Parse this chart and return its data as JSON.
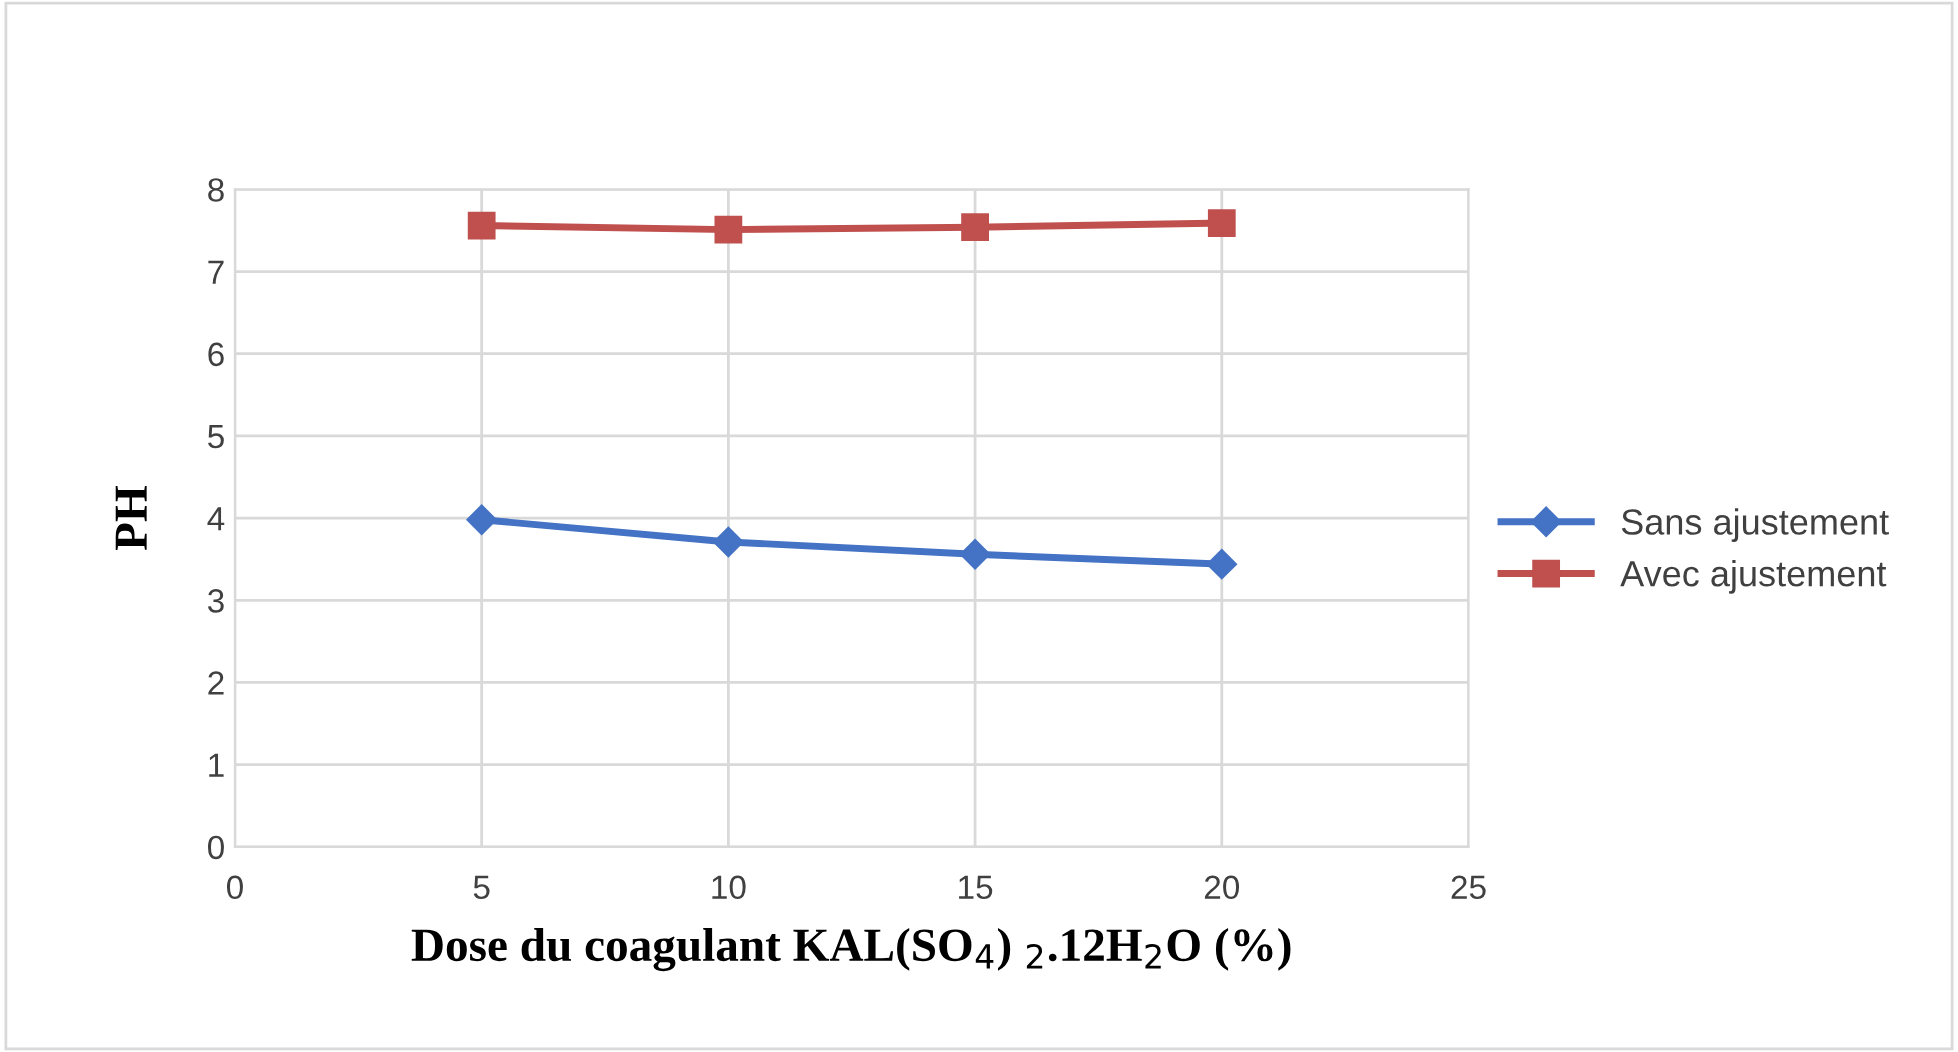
{
  "chart_data": {
    "type": "line",
    "xlabel": "Dose du coagulant KAL(SO$_{4}$) $_{2}$.12H$_{2}$O (%)",
    "ylabel": "PH",
    "x": [
      5,
      10,
      15,
      20
    ],
    "series": [
      {
        "name": "Sans ajustement",
        "color": "#4472c4",
        "marker": "diamond",
        "values": [
          3.98,
          3.71,
          3.56,
          3.44
        ]
      },
      {
        "name": "Avec ajustement",
        "color": "#c0504d",
        "marker": "square",
        "values": [
          7.56,
          7.51,
          7.54,
          7.59
        ]
      }
    ],
    "xlim": [
      0,
      25
    ],
    "xticks": [
      0,
      5,
      10,
      15,
      20,
      25
    ],
    "ylim": [
      0,
      8
    ],
    "yticks": [
      0,
      1,
      2,
      3,
      4,
      5,
      6,
      7,
      8
    ],
    "grid": true,
    "legend": "right",
    "line_style": "solid"
  }
}
